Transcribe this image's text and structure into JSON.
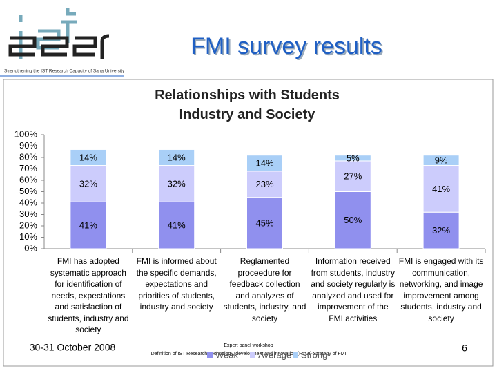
{
  "header": {
    "title": "FMI survey results",
    "subtitle": "Strengthening the IST Research Capacity of Sana University"
  },
  "footer": {
    "date": "30-31 October 2008",
    "event": "Expert panel workshop",
    "event_detail": "Definition of IST Research, technology, development and innovation (RTDI) Strategy of FMI",
    "page": "6"
  },
  "chart_data": {
    "type": "stacked-bar",
    "title": "Relationships with Students Industry and Society",
    "categories": [
      "FMI has adopted systematic approach for identification of needs, expectations and satisfaction of students, industry and society",
      "FMI is informed about the specific demands, expectations and priorities of students, industry and society",
      "Reglamented proceedure for feedback collection and analyzes of students, industry, and society",
      "Information received from students, industry and society regularly is analyzed and used for improvement of the FMI activities",
      "FMI is engaged with its communication, networking, and image improvement among students, industry and society"
    ],
    "series": [
      {
        "name": "Weak",
        "color": "#9090ee",
        "values": [
          41,
          41,
          45,
          50,
          32
        ],
        "value_labels": [
          "41%",
          "41%",
          "45%",
          "50%",
          "32%"
        ]
      },
      {
        "name": "Average",
        "color": "#ccccfc",
        "values": [
          32,
          32,
          23,
          27,
          41
        ],
        "value_labels": [
          "32%",
          "32%",
          "23%",
          "27%",
          "41%"
        ]
      },
      {
        "name": "Strong",
        "color": "#a9cff7",
        "values": [
          14,
          14,
          14,
          5,
          9
        ],
        "value_labels": [
          "14%",
          "14%",
          "14%",
          "5%",
          "9%"
        ]
      }
    ],
    "ylim": [
      0,
      100
    ],
    "yticks": [
      {
        "value": 0,
        "label": "0%"
      },
      {
        "value": 10,
        "label": "10%"
      },
      {
        "value": 20,
        "label": "20%"
      },
      {
        "value": 30,
        "label": "30%"
      },
      {
        "value": 40,
        "label": "40%"
      },
      {
        "value": 50,
        "label": "50%"
      },
      {
        "value": 60,
        "label": "60%"
      },
      {
        "value": 70,
        "label": "70%"
      },
      {
        "value": 80,
        "label": "80%"
      },
      {
        "value": 90,
        "label": "90%"
      },
      {
        "value": 100,
        "label": "100%"
      }
    ]
  }
}
